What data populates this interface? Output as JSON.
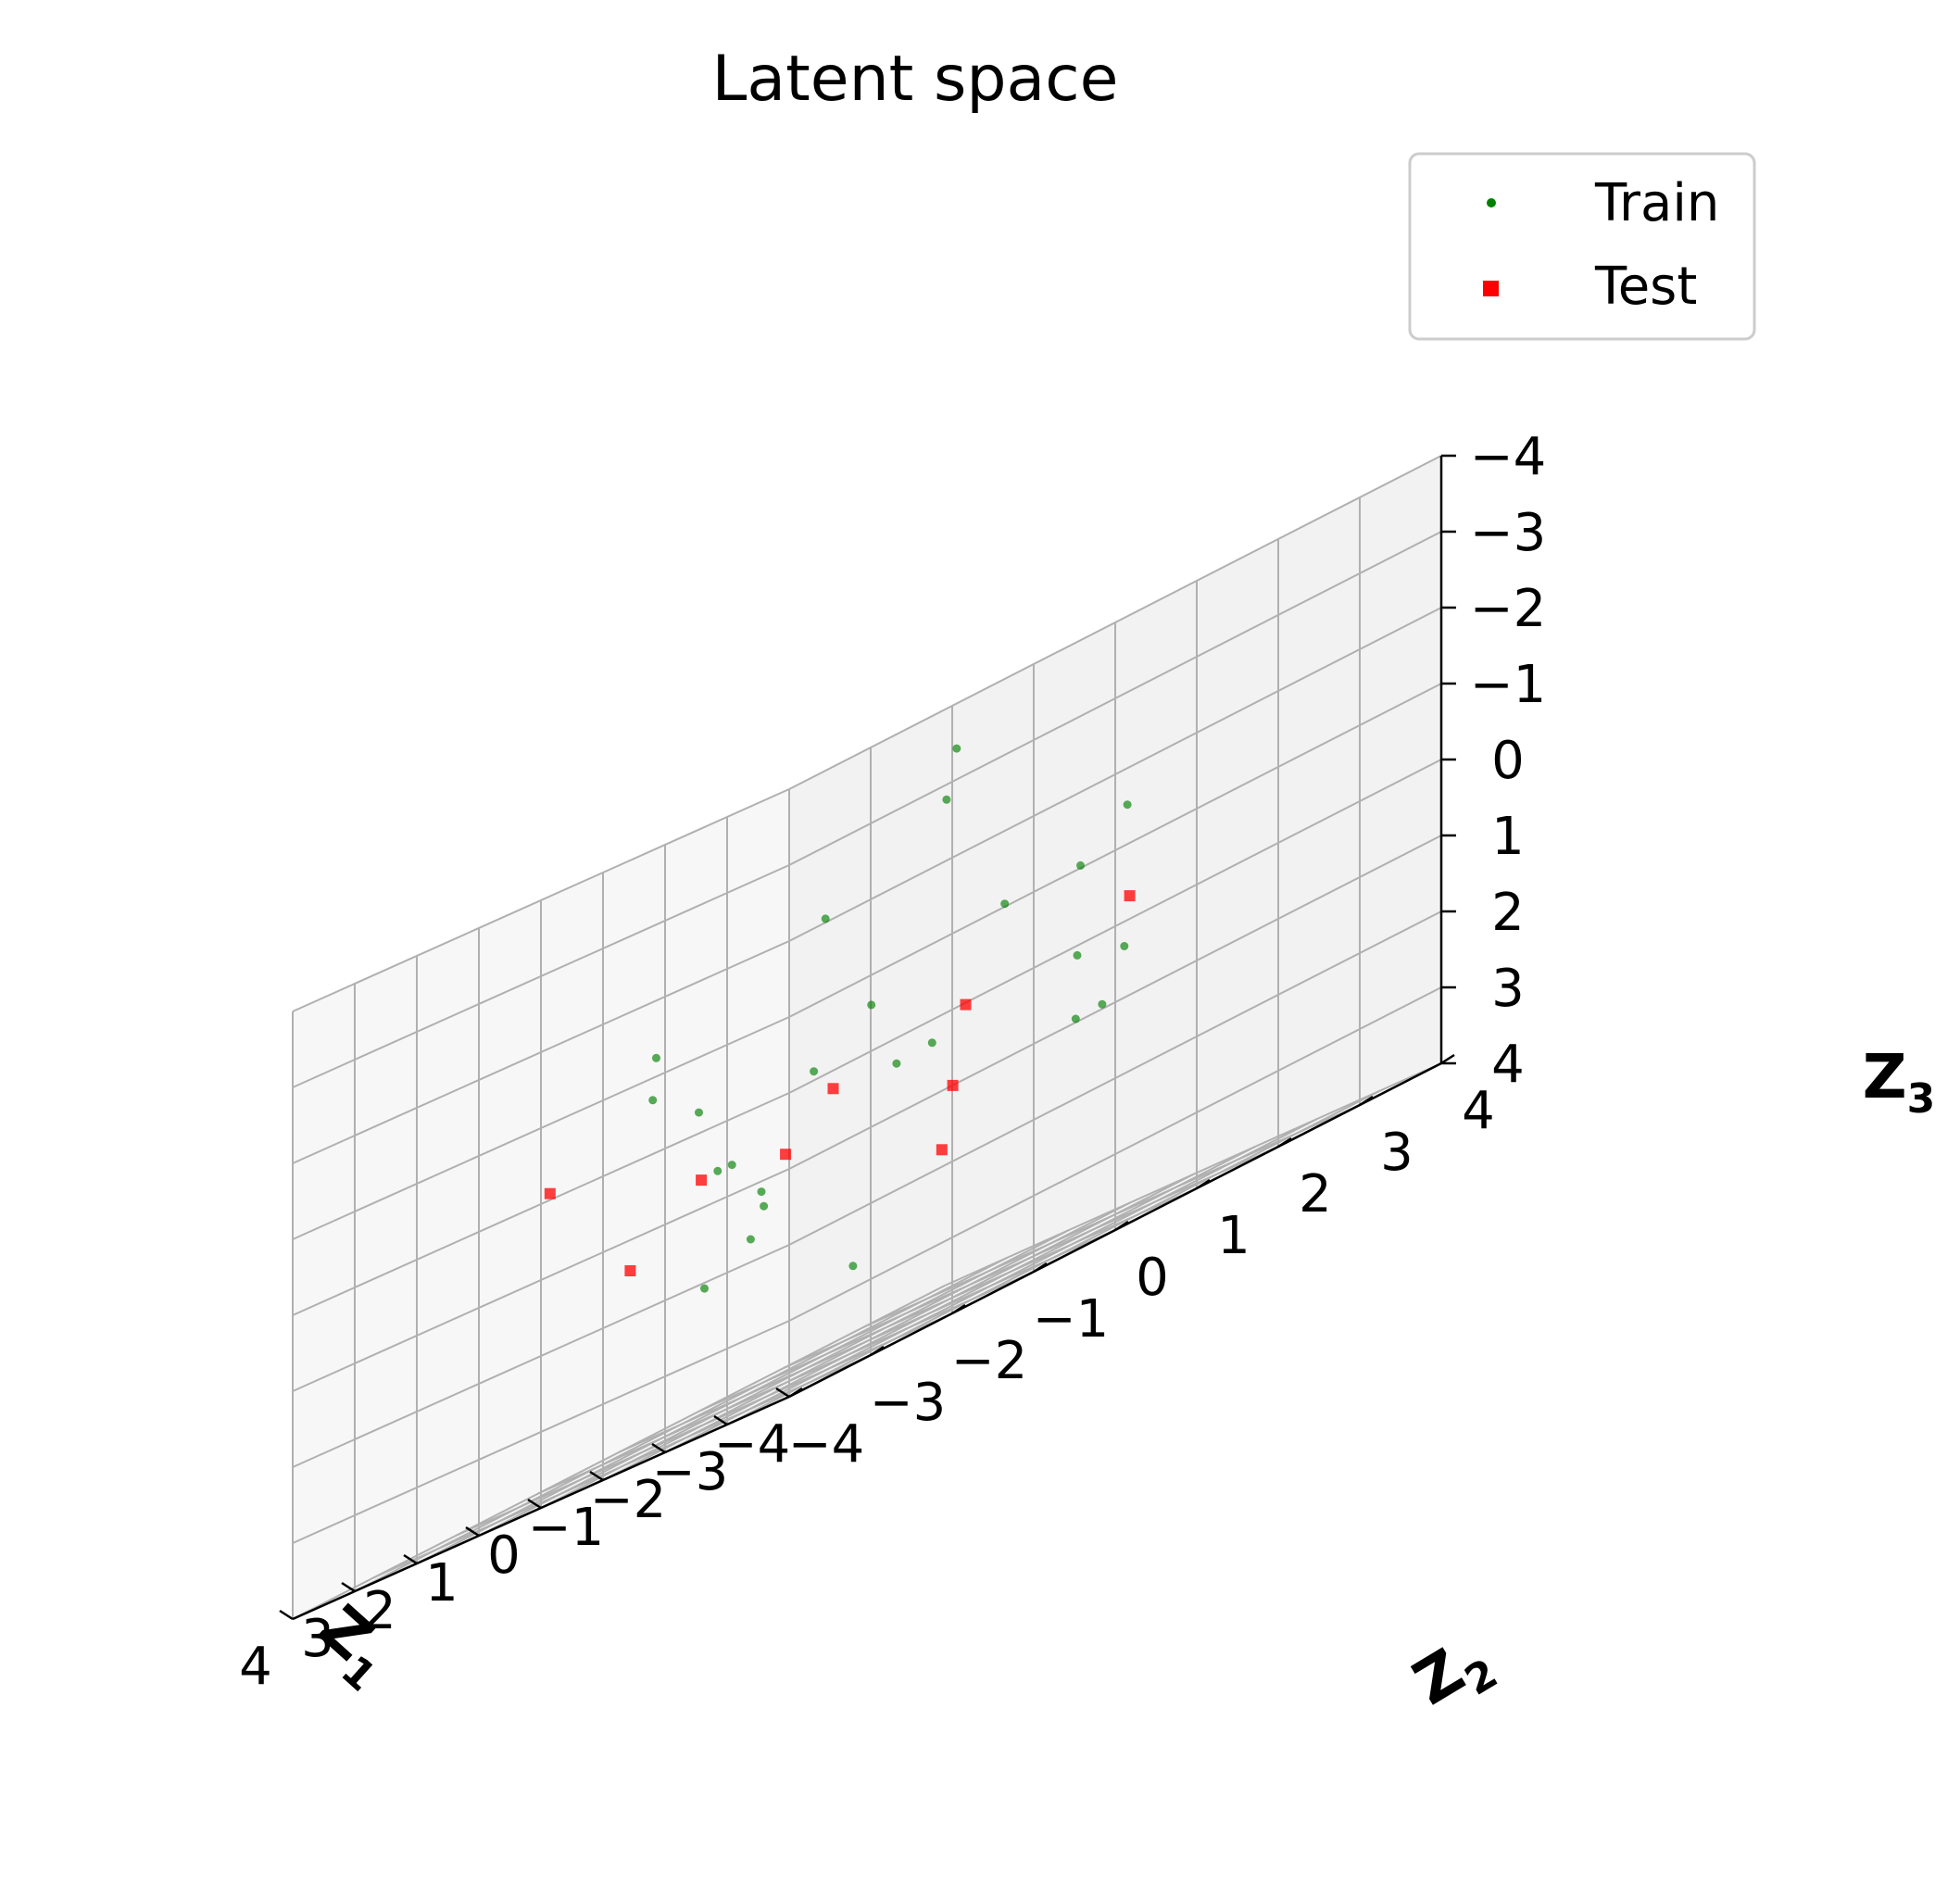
{
  "chart_data": {
    "type": "scatter",
    "projection": "3d",
    "title": "Latent space",
    "xlabel": "Z",
    "xlabel_sub": "1",
    "ylabel": "Z",
    "ylabel_sub": "2",
    "zlabel": "Z",
    "zlabel_sub": "3",
    "xlim": [
      -4,
      4
    ],
    "ylim": [
      -4,
      4
    ],
    "zlim": [
      -4,
      4
    ],
    "z_inverted": true,
    "x_ticks": [
      4,
      3,
      2,
      1,
      0,
      -1,
      -2,
      -3,
      -4
    ],
    "y_ticks": [
      -4,
      -3,
      -2,
      -1,
      0,
      1,
      2,
      3,
      4
    ],
    "z_ticks": [
      -4,
      -3,
      -2,
      -1,
      0,
      1,
      2,
      3,
      4
    ],
    "x_tick_labels": [
      "4",
      "3",
      "2",
      "1",
      "0",
      "−1",
      "−2",
      "−3",
      "−4"
    ],
    "y_tick_labels": [
      "−4",
      "−3",
      "−2",
      "−1",
      "0",
      "1",
      "2",
      "3",
      "4"
    ],
    "z_tick_labels": [
      "−4",
      "−3",
      "−2",
      "−1",
      "0",
      "1",
      "2",
      "3",
      "4"
    ],
    "grid": true,
    "legend_position": "top-right",
    "series": [
      {
        "name": "Train",
        "marker": "circle",
        "color": "#008000",
        "distribution": "approximately standard normal around the origin, about 8000 points",
        "x": [
          0.2,
          -1.3,
          1.1,
          -0.4,
          0.8,
          -2.1,
          1.9,
          -0.9,
          0.3,
          2.4,
          -1.7,
          0.6,
          -0.1,
          1.4,
          -2.6,
          0.9,
          -0.6,
          1.7,
          -1.1,
          0.0,
          2.8,
          -3.1,
          0.5,
          -0.3
        ],
        "y": [
          -0.5,
          0.7,
          1.2,
          -1.6,
          0.1,
          -0.8,
          1.5,
          2.2,
          -2.4,
          0.4,
          1.9,
          -1.2,
          0.9,
          -0.2,
          0.6,
          -1.9,
          2.7,
          -0.7,
          -2.9,
          1.1,
          0.3,
          0.2,
          3.0,
          -0.4
        ],
        "z": [
          0.1,
          -0.9,
          0.6,
          1.3,
          -1.8,
          0.4,
          -0.3,
          1.1,
          -0.6,
          2.0,
          -1.4,
          0.8,
          -2.6,
          1.6,
          0.2,
          -1.1,
          0.5,
          2.3,
          -0.2,
          -3.2,
          0.9,
          1.0,
          -0.8,
          2.9
        ]
      },
      {
        "name": "Test",
        "marker": "square",
        "color": "#ff0000",
        "x": [
          -0.2,
          0.7,
          -1.6,
          2.1,
          -0.9,
          1.3,
          3.4,
          -2.0,
          0.4
        ],
        "y": [
          0.9,
          -1.5,
          -0.3,
          0.6,
          -1.1,
          2.2,
          -1.3,
          1.7,
          -2.6
        ],
        "z": [
          1.2,
          0.8,
          1.9,
          1.1,
          0.4,
          0.3,
          0.1,
          -0.2,
          1.5
        ]
      }
    ]
  },
  "legend": {
    "train_label": "Train",
    "test_label": "Test"
  }
}
